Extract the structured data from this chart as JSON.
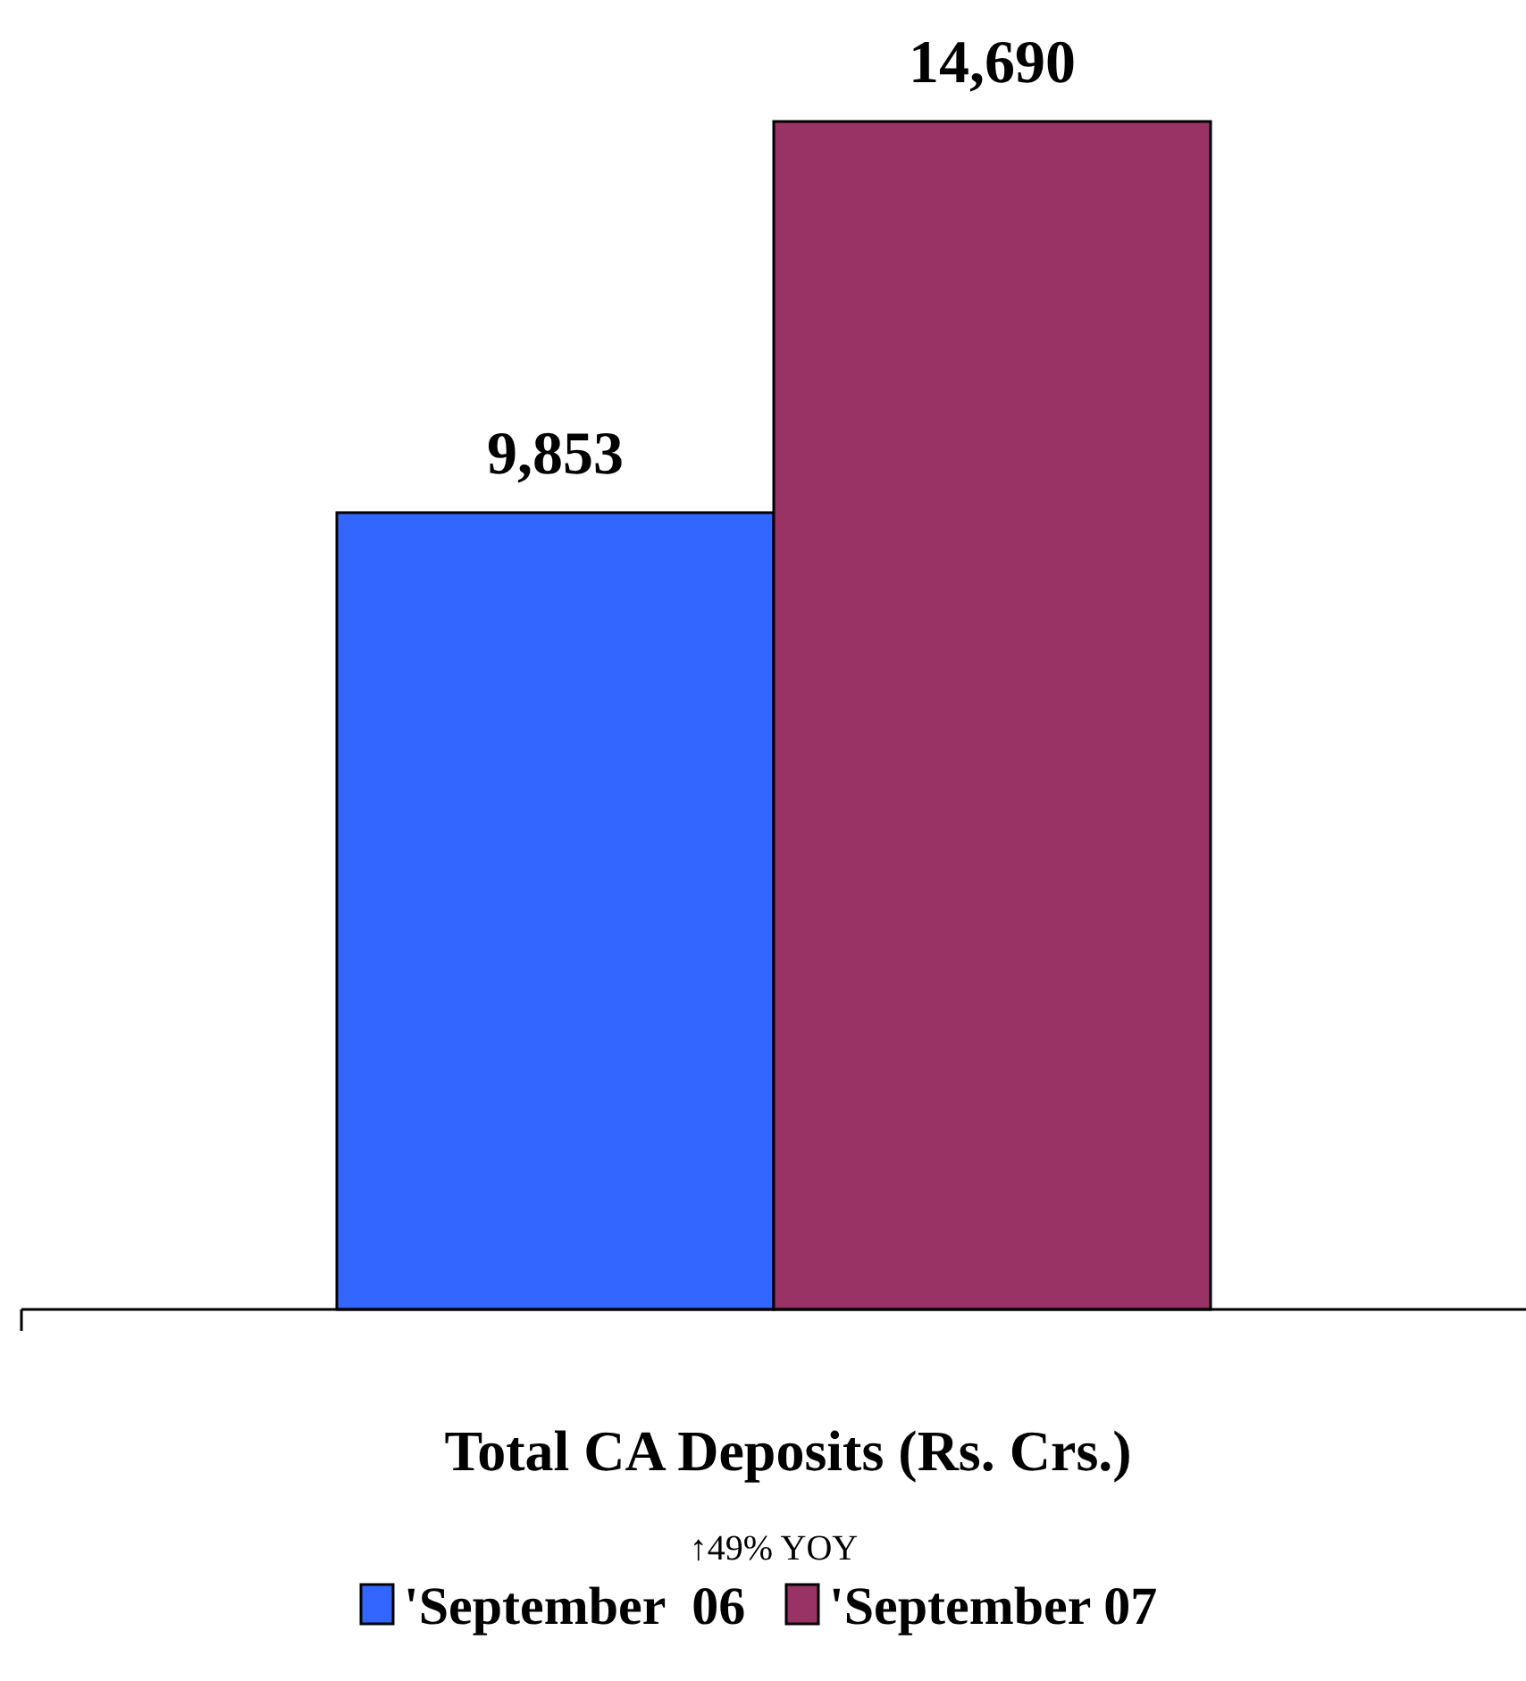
{
  "chart_data": {
    "type": "bar",
    "categories": [
      null
    ],
    "xlabel": "Total CA Deposits (Rs. Crs.)",
    "annotations": [
      "↑49% YOY"
    ],
    "series": [
      {
        "name": "'September  06",
        "color": "#3366ff",
        "values": [
          9853
        ],
        "value_labels": [
          "9,853"
        ]
      },
      {
        "name": "'September 07",
        "color": "#993366",
        "values": [
          14690
        ],
        "value_labels": [
          "14,690"
        ]
      }
    ],
    "legend": "bottom"
  }
}
